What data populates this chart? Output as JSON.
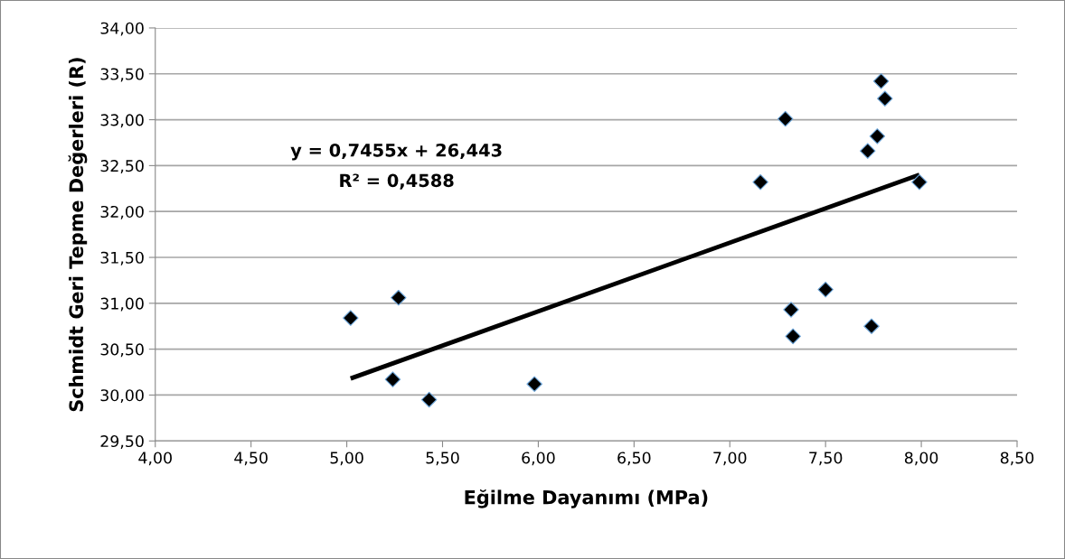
{
  "chart_data": {
    "type": "scatter",
    "xlabel": "Eğilme Dayanımı (MPa)",
    "ylabel": "Schmidt Geri Tepme Değerleri (R)",
    "series": [
      {
        "color": "#000000",
        "marker": "diamond",
        "x": [
          5.02,
          5.27,
          5.24,
          5.43,
          5.98,
          7.16,
          7.29,
          7.79,
          7.81,
          7.77,
          7.72,
          7.99,
          7.5,
          7.32,
          7.33,
          7.74
        ],
        "values": [
          30.84,
          31.06,
          30.17,
          29.95,
          30.12,
          32.32,
          33.01,
          33.42,
          33.23,
          32.82,
          32.66,
          32.32,
          31.15,
          30.93,
          30.64,
          30.75
        ]
      },
      {
        "type": "line",
        "color": "#000000",
        "marker": "none",
        "x": [
          5.02,
          7.99
        ],
        "values": [
          30.18,
          32.4
        ]
      }
    ],
    "xlim": [
      4,
      8.5
    ],
    "xticks": [
      {
        "value": 4,
        "label": "4,00"
      },
      {
        "value": 4.5,
        "label": "4,50"
      },
      {
        "value": 5,
        "label": "5,00"
      },
      {
        "value": 5.5,
        "label": "5,50"
      },
      {
        "value": 6,
        "label": "6,00"
      },
      {
        "value": 6.5,
        "label": "6,50"
      },
      {
        "value": 7,
        "label": "7,00"
      },
      {
        "value": 7.5,
        "label": "7,50"
      },
      {
        "value": 8,
        "label": "8,00"
      },
      {
        "value": 8.5,
        "label": "8,50"
      }
    ],
    "ylim": [
      29.5,
      34
    ],
    "yticks": [
      {
        "value": 29.5,
        "label": "29,50"
      },
      {
        "value": 30,
        "label": "30,00"
      },
      {
        "value": 30.5,
        "label": "30,50"
      },
      {
        "value": 31,
        "label": "31,00"
      },
      {
        "value": 31.5,
        "label": "31,50"
      },
      {
        "value": 32,
        "label": "32,00"
      },
      {
        "value": 32.5,
        "label": "32,50"
      },
      {
        "value": 33,
        "label": "33,00"
      },
      {
        "value": 33.5,
        "label": "33,50"
      },
      {
        "value": 34,
        "label": "34,00"
      }
    ],
    "grid": "y",
    "annotations": [
      "y = 0,7455x + 26,443",
      "R² = 0,4588"
    ]
  }
}
